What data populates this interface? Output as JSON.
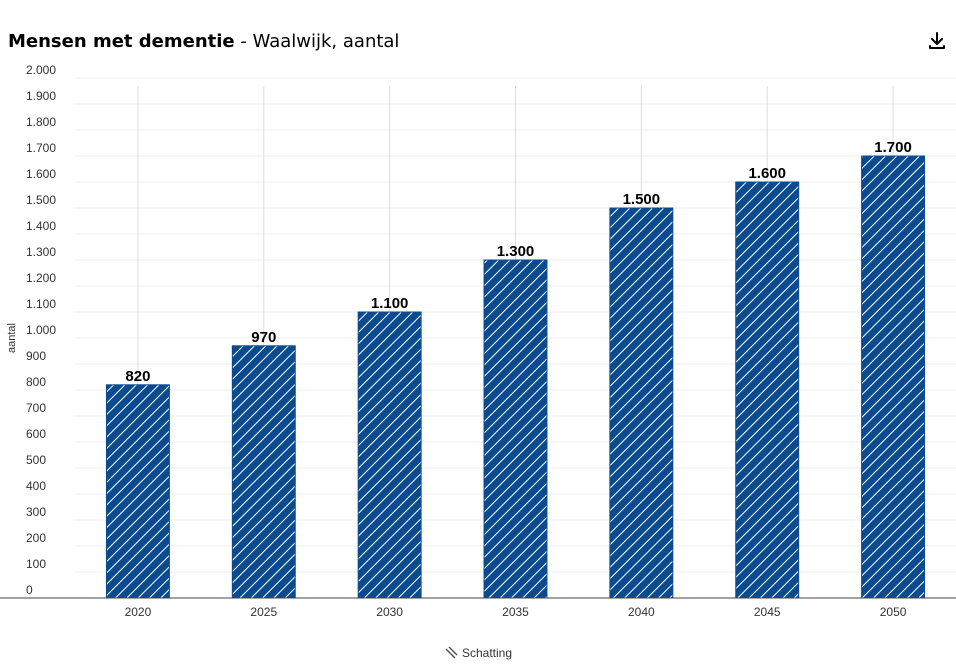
{
  "header": {
    "title": "Mensen met dementie",
    "subtitle": " - Waalwijk, aantal",
    "download_icon": "download-icon"
  },
  "chart_data": {
    "type": "bar",
    "categories": [
      "2020",
      "2025",
      "2030",
      "2035",
      "2040",
      "2045",
      "2050"
    ],
    "series": [
      {
        "name": "Schatting",
        "values": [
          820,
          970,
          1100,
          1300,
          1500,
          1600,
          1700
        ],
        "labels": [
          "820",
          "970",
          "1.100",
          "1.300",
          "1.500",
          "1.600",
          "1.700"
        ]
      }
    ],
    "title": "Mensen met dementie - Waalwijk, aantal",
    "xlabel": "",
    "ylabel": "aantal",
    "ylim": [
      0,
      2000
    ],
    "yticks": [
      0,
      100,
      200,
      300,
      400,
      500,
      600,
      700,
      800,
      900,
      1000,
      1100,
      1200,
      1300,
      1400,
      1500,
      1600,
      1700,
      1800,
      1900,
      2000
    ],
    "ytick_labels": [
      "0",
      "100",
      "200",
      "300",
      "400",
      "500",
      "600",
      "700",
      "800",
      "900",
      "1.000",
      "1.100",
      "1.200",
      "1.300",
      "1.400",
      "1.500",
      "1.600",
      "1.700",
      "1.800",
      "1.900",
      "2.000"
    ],
    "grid": true,
    "legend": "bottom-center",
    "bar_color": "#0a4b8f",
    "hatch_color": "#ffffff",
    "pattern": "diagonal-hatch"
  },
  "legend": {
    "label": "Schatting",
    "icon": "hatch-pattern-icon"
  }
}
